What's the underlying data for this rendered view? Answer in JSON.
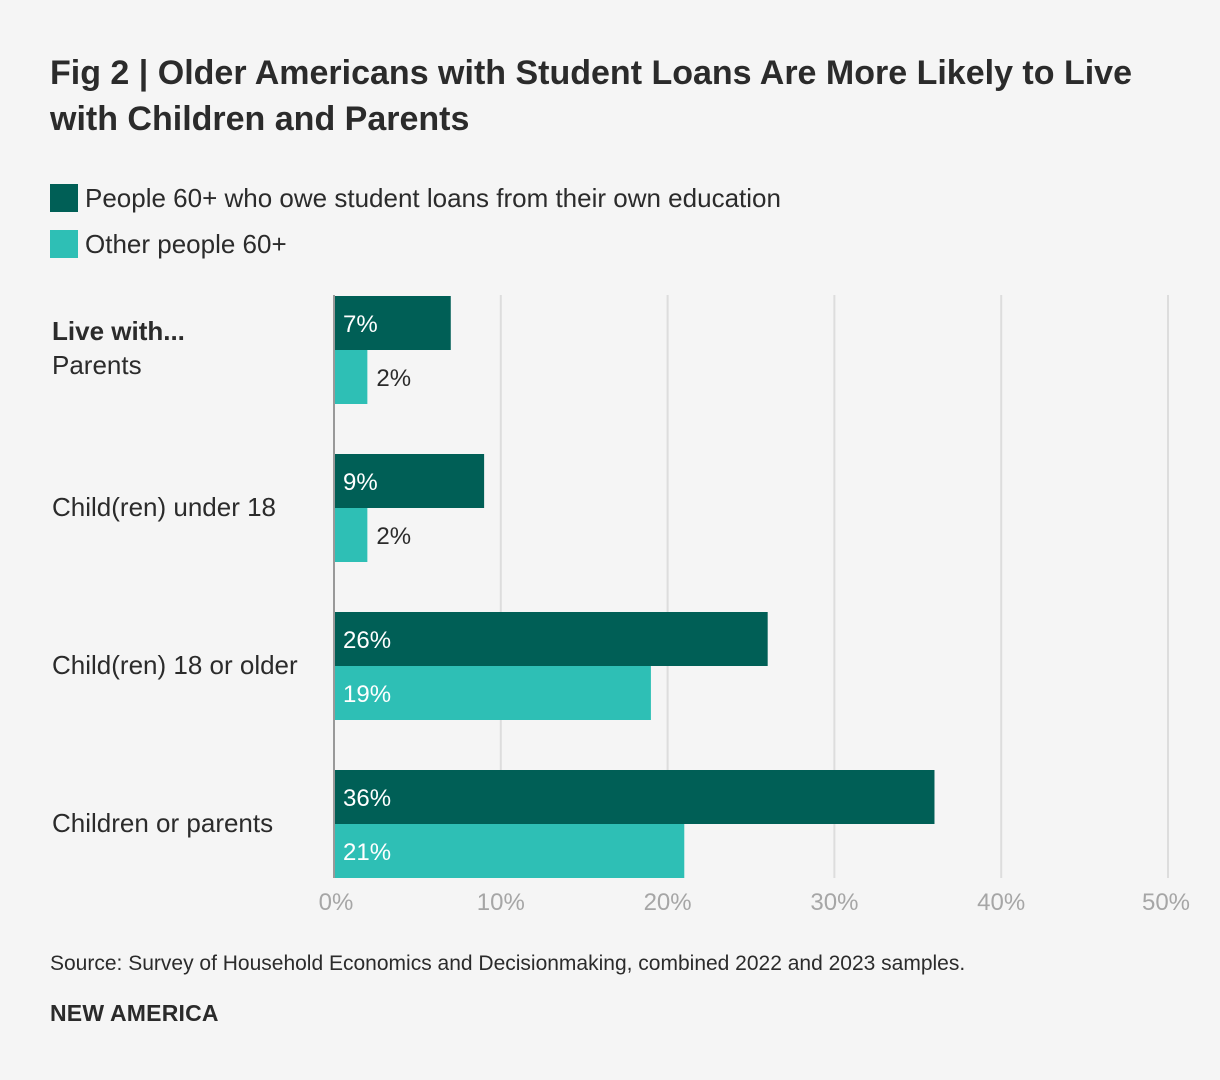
{
  "title": "Fig 2 | Older Americans with Student Loans Are More Likely to Live with Children and Parents",
  "colors": {
    "series_a": "#005f56",
    "series_b": "#2ebfb5",
    "grid": "#dddddd",
    "axis": "#999999",
    "tick": "#a6a6a6"
  },
  "category_heading": "Live with...",
  "chart_data": {
    "type": "bar",
    "orientation": "horizontal",
    "categories": [
      "Parents",
      "Child(ren) under 18",
      "Child(ren) 18 or older",
      "Children or parents"
    ],
    "series": [
      {
        "name": "People 60+ who owe student loans from their own education",
        "values": [
          7,
          9,
          26,
          36
        ],
        "labels": [
          "7%",
          "9%",
          "26%",
          "36%"
        ]
      },
      {
        "name": "Other people 60+",
        "values": [
          2,
          2,
          19,
          21
        ],
        "labels": [
          "2%",
          "2%",
          "19%",
          "21%"
        ]
      }
    ],
    "xlim": [
      0,
      50
    ],
    "xticks": [
      0,
      10,
      20,
      30,
      40,
      50
    ],
    "xtick_labels": [
      "0%",
      "10%",
      "20%",
      "30%",
      "40%",
      "50%"
    ],
    "grid": true,
    "legend_position": "top-left"
  },
  "source": "Source: Survey of Household Economics and Decisionmaking, combined 2022 and 2023 samples.",
  "brand": "NEW AMERICA"
}
